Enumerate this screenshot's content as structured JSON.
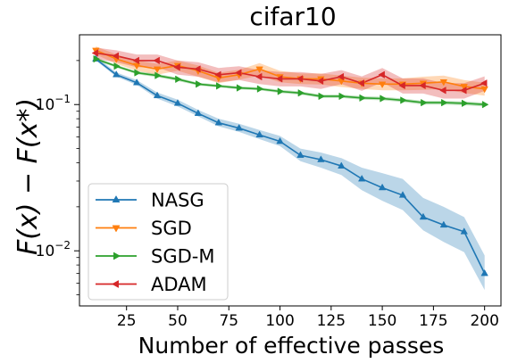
{
  "chart_data": {
    "type": "line",
    "title": "cifar10",
    "xlabel": "Number of effective passes",
    "ylabel": "F(x) − F(x*)",
    "yscale": "log",
    "xlim": [
      2,
      208
    ],
    "ylim": [
      0.0042,
      0.3
    ],
    "xticks": [
      25,
      50,
      75,
      100,
      125,
      150,
      175,
      200
    ],
    "yticks": [
      {
        "value": 0.01,
        "base": "10",
        "exp": "−2"
      },
      {
        "value": 0.1,
        "base": "10",
        "exp": "−1"
      }
    ],
    "grid": false,
    "legend_position": "lower-left",
    "x": [
      10,
      20,
      30,
      40,
      50,
      60,
      70,
      80,
      90,
      100,
      110,
      120,
      130,
      140,
      150,
      160,
      170,
      180,
      190,
      200
    ],
    "series": [
      {
        "name": "NASG",
        "color": "#1f77b4",
        "marker": "triangle-up",
        "values": [
          0.205,
          0.16,
          0.141,
          0.115,
          0.102,
          0.087,
          0.075,
          0.069,
          0.062,
          0.056,
          0.045,
          0.042,
          0.038,
          0.031,
          0.027,
          0.024,
          0.017,
          0.015,
          0.0135,
          0.007
        ],
        "lower": [
          0.2,
          0.155,
          0.136,
          0.11,
          0.097,
          0.083,
          0.071,
          0.065,
          0.058,
          0.052,
          0.041,
          0.037,
          0.033,
          0.026,
          0.022,
          0.019,
          0.0138,
          0.0115,
          0.0098,
          0.0054
        ],
        "upper": [
          0.212,
          0.166,
          0.147,
          0.121,
          0.108,
          0.092,
          0.08,
          0.074,
          0.067,
          0.061,
          0.05,
          0.047,
          0.043,
          0.037,
          0.034,
          0.031,
          0.023,
          0.02,
          0.017,
          0.0093
        ]
      },
      {
        "name": "SGD",
        "color": "#ff7f0e",
        "marker": "triangle-down",
        "values": [
          0.235,
          0.205,
          0.185,
          0.175,
          0.185,
          0.17,
          0.152,
          0.16,
          0.175,
          0.155,
          0.15,
          0.15,
          0.145,
          0.14,
          0.138,
          0.138,
          0.14,
          0.143,
          0.133,
          0.128
        ],
        "lower": [
          0.22,
          0.19,
          0.17,
          0.16,
          0.17,
          0.155,
          0.14,
          0.148,
          0.158,
          0.142,
          0.138,
          0.137,
          0.132,
          0.128,
          0.125,
          0.125,
          0.126,
          0.128,
          0.12,
          0.115
        ],
        "upper": [
          0.25,
          0.22,
          0.2,
          0.19,
          0.2,
          0.185,
          0.165,
          0.173,
          0.192,
          0.17,
          0.163,
          0.163,
          0.158,
          0.153,
          0.151,
          0.151,
          0.155,
          0.158,
          0.147,
          0.141
        ]
      },
      {
        "name": "SGD-M",
        "color": "#2ca02c",
        "marker": "triangle-right",
        "values": [
          0.205,
          0.183,
          0.165,
          0.158,
          0.149,
          0.138,
          0.134,
          0.13,
          0.128,
          0.123,
          0.12,
          0.114,
          0.114,
          0.111,
          0.11,
          0.107,
          0.103,
          0.103,
          0.102,
          0.1
        ],
        "lower": [
          0.2,
          0.179,
          0.161,
          0.154,
          0.145,
          0.135,
          0.131,
          0.127,
          0.125,
          0.12,
          0.117,
          0.111,
          0.111,
          0.108,
          0.107,
          0.104,
          0.1,
          0.1,
          0.099,
          0.097
        ],
        "upper": [
          0.21,
          0.187,
          0.169,
          0.162,
          0.153,
          0.141,
          0.137,
          0.133,
          0.131,
          0.126,
          0.123,
          0.117,
          0.117,
          0.114,
          0.113,
          0.11,
          0.106,
          0.106,
          0.105,
          0.103
        ]
      },
      {
        "name": "ADAM",
        "color": "#d62728",
        "marker": "triangle-left",
        "values": [
          0.225,
          0.215,
          0.2,
          0.2,
          0.18,
          0.175,
          0.16,
          0.165,
          0.155,
          0.15,
          0.15,
          0.145,
          0.155,
          0.14,
          0.16,
          0.135,
          0.135,
          0.125,
          0.125,
          0.14
        ],
        "lower": [
          0.205,
          0.195,
          0.18,
          0.18,
          0.16,
          0.155,
          0.142,
          0.147,
          0.138,
          0.133,
          0.133,
          0.128,
          0.138,
          0.124,
          0.142,
          0.119,
          0.119,
          0.11,
          0.11,
          0.124
        ],
        "upper": [
          0.245,
          0.235,
          0.22,
          0.22,
          0.2,
          0.195,
          0.178,
          0.183,
          0.172,
          0.167,
          0.167,
          0.162,
          0.172,
          0.156,
          0.178,
          0.151,
          0.151,
          0.14,
          0.14,
          0.156
        ]
      }
    ]
  }
}
